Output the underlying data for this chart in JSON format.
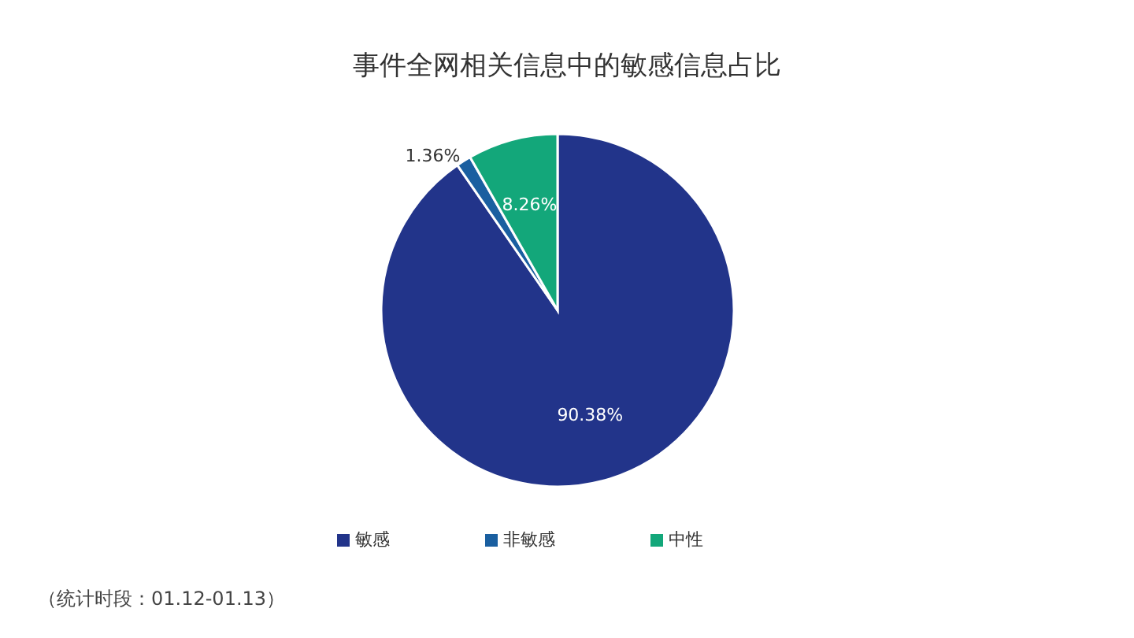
{
  "chart_data": {
    "type": "pie",
    "title": "事件全网相关信息中的敏感信息占比",
    "categories": [
      "敏感",
      "非敏感",
      "中性"
    ],
    "values": [
      90.38,
      1.36,
      8.26
    ],
    "value_labels": [
      "90.38%",
      "1.36%",
      "8.26%"
    ],
    "colors": [
      "#22348a",
      "#1a5fa0",
      "#13a77a"
    ],
    "legend": "bottom",
    "annotations": [
      "（统计时段：01.12-01.13）"
    ]
  }
}
